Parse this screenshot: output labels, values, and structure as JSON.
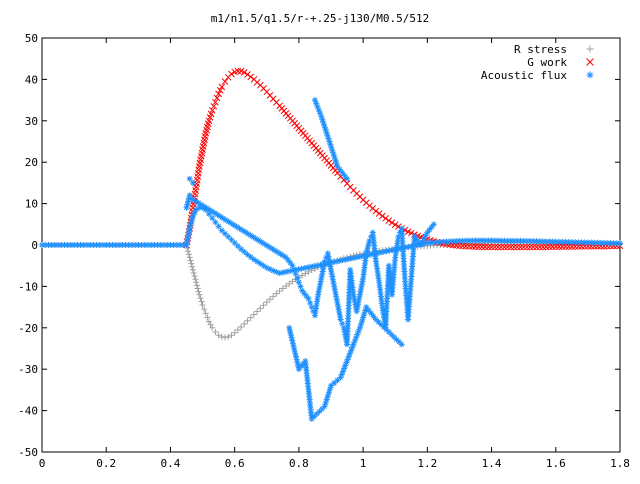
{
  "chart_data": {
    "type": "scatter",
    "title": "m1/n1.5/q1.5/r-+.25-j130/M0.5/512",
    "xlabel": "",
    "ylabel": "",
    "xlim": [
      0,
      1.8
    ],
    "ylim": [
      -50,
      50
    ],
    "x_ticks": [
      "0",
      "0.2",
      "0.4",
      "0.6",
      "0.8",
      "1",
      "1.2",
      "1.4",
      "1.6",
      "1.8"
    ],
    "y_ticks": [
      "50",
      "40",
      "30",
      "20",
      "10",
      "0",
      "-10",
      "-20",
      "-30",
      "-40",
      "-50"
    ],
    "grid": false,
    "legend_position": "top-right",
    "series": [
      {
        "name": "R stress",
        "marker": "plus",
        "color": "#a0a0a0",
        "x": [
          0,
          0.45,
          0.46,
          0.47,
          0.48,
          0.49,
          0.5,
          0.51,
          0.52,
          0.53,
          0.54,
          0.55,
          0.56,
          0.57,
          0.58,
          0.59,
          0.6,
          0.62,
          0.64,
          0.66,
          0.68,
          0.7,
          0.72,
          0.74,
          0.76,
          0.78,
          0.8,
          0.82,
          0.84,
          0.86,
          0.88,
          0.9,
          0.92,
          0.94,
          0.96,
          0.98,
          1.0,
          1.02,
          1.04,
          1.06,
          1.08,
          1.1,
          1.12,
          1.14,
          1.16,
          1.18,
          1.2,
          1.22,
          1.24,
          1.26,
          1.28,
          1.3,
          1.35,
          1.4,
          1.45,
          1.5,
          1.55,
          1.6,
          1.65,
          1.7,
          1.75,
          1.8
        ],
        "y": [
          0,
          0,
          -3,
          -6,
          -9,
          -12,
          -14.5,
          -16.5,
          -18.5,
          -20,
          -21,
          -21.8,
          -22.2,
          -22.3,
          -22.2,
          -21.8,
          -21.2,
          -19.8,
          -18.3,
          -16.8,
          -15.3,
          -13.8,
          -12.4,
          -11.1,
          -9.9,
          -8.8,
          -7.8,
          -6.9,
          -6.1,
          -5.4,
          -4.8,
          -4.2,
          -3.7,
          -3.2,
          -2.8,
          -2.4,
          -2.1,
          -1.8,
          -1.5,
          -1.3,
          -1.1,
          -0.9,
          -0.7,
          -0.55,
          -0.4,
          -0.3,
          -0.2,
          -0.1,
          0,
          0.1,
          0.2,
          0.3,
          0.4,
          0.5,
          0.5,
          0.5,
          0.4,
          0.4,
          0.3,
          0.3,
          0.2,
          0.2
        ]
      },
      {
        "name": "G work",
        "marker": "cross",
        "color": "#ff0000",
        "x": [
          0.45,
          0.46,
          0.47,
          0.48,
          0.49,
          0.5,
          0.51,
          0.52,
          0.53,
          0.54,
          0.55,
          0.56,
          0.57,
          0.58,
          0.59,
          0.6,
          0.61,
          0.62,
          0.63,
          0.64,
          0.66,
          0.68,
          0.7,
          0.72,
          0.74,
          0.76,
          0.78,
          0.8,
          0.82,
          0.84,
          0.86,
          0.88,
          0.9,
          0.92,
          0.94,
          0.96,
          0.98,
          1.0,
          1.02,
          1.04,
          1.06,
          1.08,
          1.1,
          1.12,
          1.14,
          1.16,
          1.18,
          1.2,
          1.22,
          1.24,
          1.26,
          1.28,
          1.3,
          1.35,
          1.4,
          1.45,
          1.5,
          1.55,
          1.6,
          1.65,
          1.7,
          1.75,
          1.8
        ],
        "y": [
          0,
          4,
          9,
          14,
          19,
          23,
          27,
          30,
          32.5,
          34.5,
          36.5,
          38.2,
          39.5,
          40.5,
          41.3,
          41.8,
          42,
          42,
          41.7,
          41.2,
          40,
          38.6,
          37,
          35.3,
          33.6,
          31.8,
          30,
          28.2,
          26.4,
          24.6,
          22.8,
          21,
          19.2,
          17.4,
          15.7,
          14,
          12.4,
          10.9,
          9.5,
          8.2,
          7,
          5.9,
          4.9,
          4,
          3.2,
          2.5,
          1.9,
          1.4,
          0.9,
          0.5,
          0.2,
          0,
          -0.2,
          -0.4,
          -0.5,
          -0.5,
          -0.5,
          -0.5,
          -0.4,
          -0.4,
          -0.3,
          -0.3,
          -0.2
        ]
      },
      {
        "name": "Acoustic flux",
        "marker": "star",
        "color": "#1e90ff",
        "x": [
          0,
          0.45,
          0.46,
          0.47,
          0.48,
          0.49,
          0.5,
          0.51,
          0.52,
          0.53,
          0.54,
          0.55,
          0.56,
          0.58,
          0.6,
          0.62,
          0.64,
          0.66,
          0.68,
          0.7,
          0.72,
          0.74,
          1.2,
          1.25,
          1.3,
          1.35,
          1.4,
          1.45,
          1.5,
          1.55,
          1.6,
          1.65,
          1.7,
          1.75,
          1.8,
          0.45,
          0.46,
          0.46,
          0.47,
          0.47,
          0.76,
          0.78,
          0.79,
          0.8,
          0.81,
          0.83,
          0.84,
          0.85,
          0.86,
          0.87,
          0.88,
          0.89,
          0.9,
          0.91,
          0.92,
          0.93,
          0.94,
          0.95,
          0.96,
          0.97,
          0.98,
          1.0,
          1.01,
          1.02,
          1.03,
          1.04,
          1.05,
          1.06,
          1.07,
          1.08,
          1.09,
          1.1,
          1.11,
          1.12,
          1.13,
          1.14,
          1.16,
          1.18,
          1.2,
          1.22,
          0.77,
          0.8,
          0.82,
          0.84,
          0.88,
          0.9,
          0.93,
          0.97,
          0.99,
          1.01,
          1.04,
          1.08,
          1.12,
          0.85,
          0.87,
          0.92,
          0.95
        ],
        "y": [
          0,
          0,
          4,
          7,
          8.5,
          9,
          9,
          8.5,
          7.5,
          6.5,
          5.5,
          4.5,
          3.5,
          2,
          0.5,
          -1,
          -2.3,
          -3.5,
          -4.5,
          -5.5,
          -6.2,
          -6.8,
          0.5,
          0.8,
          1,
          1.1,
          1.1,
          1,
          1,
          0.9,
          0.8,
          0.7,
          0.6,
          0.5,
          0.4,
          9,
          12,
          16,
          15,
          11,
          -3,
          -5,
          -7,
          -9,
          -11,
          -13,
          -15,
          -17,
          -12,
          -8,
          -4,
          -2,
          -6,
          -10,
          -14,
          -18,
          -20,
          -24,
          -6,
          -12,
          -16,
          -8,
          -2,
          1,
          3,
          -4,
          -9,
          -15,
          -20,
          -5,
          -12,
          -3,
          2,
          4,
          -8,
          -18,
          2,
          0,
          3,
          5,
          -20,
          -30,
          -28,
          -42,
          -39,
          -34,
          -32,
          -24,
          -20,
          -15,
          -18,
          -21,
          -24,
          35,
          31,
          19,
          16
        ]
      }
    ]
  }
}
